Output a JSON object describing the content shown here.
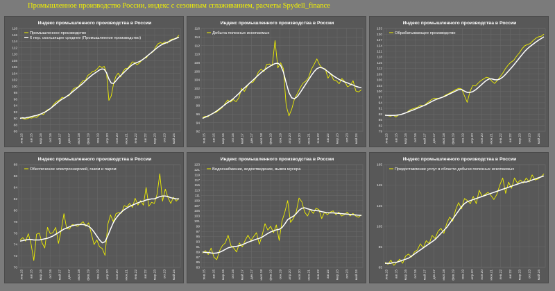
{
  "page": {
    "title": "Промышленное производство России, индекс с сезонным сглаживанием, расчеты Spydell_finance"
  },
  "colors": {
    "background": "#7b7b7b",
    "panel": "#585858",
    "grid": "#6b6b6b",
    "raw_series": "#f0f000",
    "smoothed_series": "#ffffff",
    "title_text": "#f2f200"
  },
  "chart_data": [
    {
      "type": "line",
      "title": "Индекс промышленного производства в России",
      "legend": "top-left",
      "grid": true,
      "ylim": [
        86,
        118
      ],
      "yticks": [
        86,
        88,
        90,
        92,
        94,
        96,
        98,
        100,
        102,
        104,
        106,
        108,
        110,
        112,
        114,
        116,
        118
      ],
      "xticks": [
        "янв.15",
        "авг.15",
        "мар.16",
        "окт.16",
        "май.17",
        "дек.17",
        "июл.18",
        "фев.19",
        "сен.19",
        "апр.20",
        "ноя.20",
        "июн.21",
        "янв.22",
        "авг.22",
        "мар.23",
        "окт.23",
        "май.24"
      ],
      "series": [
        {
          "name": "Промышленное производство",
          "role": "raw",
          "values": [
            90.2,
            90.0,
            89.8,
            89.9,
            90.2,
            90.1,
            90.5,
            90.3,
            90.9,
            91.5,
            91.2,
            92.3,
            92.8,
            93.0,
            94.0,
            94.9,
            95.4,
            95.8,
            96.6,
            96.3,
            97.0,
            97.1,
            98.4,
            99.3,
            99.6,
            99.9,
            101.0,
            101.8,
            101.9,
            103.4,
            103.9,
            104.6,
            104.8,
            105.4,
            106.3,
            105.8,
            106.2,
            104.1,
            95.6,
            97.0,
            100.8,
            103.1,
            104.1,
            102.9,
            104.5,
            105.5,
            105.6,
            106.5,
            107.6,
            107.5,
            106.7,
            107.2,
            108.0,
            108.8,
            108.8,
            109.9,
            110.3,
            110.8,
            112.2,
            113.2,
            113.6,
            113.3,
            113.8,
            113.4,
            114.3,
            114.7,
            114.8,
            115.1,
            115.9
          ]
        },
        {
          "name": "6 пер. скользящее среднее (Промышленное производство)",
          "role": "smoothed",
          "values": [
            90.0,
            90.2,
            90.1,
            90.3,
            90.4,
            90.6,
            90.8,
            90.9,
            91.2,
            91.4,
            91.8,
            92.1,
            92.6,
            93.1,
            93.7,
            94.3,
            94.9,
            95.5,
            96.0,
            96.4,
            96.9,
            97.4,
            98.0,
            98.6,
            99.2,
            99.8,
            100.4,
            101.0,
            101.7,
            102.4,
            103.0,
            103.6,
            104.1,
            104.6,
            105.1,
            105.4,
            105.3,
            104.2,
            102.3,
            101.0,
            100.9,
            101.7,
            102.6,
            103.3,
            104.0,
            104.7,
            105.4,
            106.1,
            106.7,
            107.1,
            107.4,
            107.7,
            108.1,
            108.6,
            109.2,
            109.8,
            110.4,
            111.0,
            111.6,
            112.2,
            112.7,
            113.1,
            113.4,
            113.7,
            114.0,
            114.4,
            114.7,
            115.0,
            115.3
          ]
        }
      ]
    },
    {
      "type": "line",
      "title": "Индекс промышленного производства в России",
      "legend": "top-left",
      "grid": true,
      "ylim": [
        92,
        116
      ],
      "yticks": [
        92,
        94,
        96,
        98,
        100,
        102,
        104,
        106,
        108,
        110,
        112,
        114,
        116
      ],
      "xticks": [
        "янв.15",
        "авг.15",
        "мар.16",
        "окт.16",
        "май.17",
        "дек.17",
        "июл.18",
        "фев.19",
        "сен.19",
        "апр.20",
        "ноя.20",
        "июн.21",
        "янв.22",
        "авг.22",
        "мар.23",
        "окт.23",
        "май.24"
      ],
      "series": [
        {
          "name": "Добыча полезных ископаемых",
          "role": "raw",
          "values": [
            95.2,
            95.5,
            95.4,
            96.0,
            96.2,
            96.5,
            97.0,
            97.5,
            98.4,
            99.3,
            98.8,
            99.4,
            98.9,
            99.8,
            102.0,
            101.3,
            102.5,
            103.4,
            103.4,
            104.3,
            105.8,
            106.5,
            105.9,
            107.6,
            107.7,
            107.3,
            113.2,
            106.8,
            108.0,
            106.6,
            98.0,
            95.6,
            97.2,
            99.6,
            100.8,
            102.1,
            103.2,
            103.7,
            104.5,
            106.4,
            107.6,
            108.9,
            107.5,
            106.7,
            106.6,
            104.4,
            105.4,
            104.0,
            103.8,
            103.1,
            104.3,
            103.6,
            102.4,
            102.7,
            103.8,
            101.4,
            101.2,
            101.7
          ]
        },
        {
          "name": "",
          "role": "smoothed",
          "values": [
            95.0,
            95.3,
            95.6,
            95.9,
            96.3,
            96.7,
            97.2,
            97.7,
            98.2,
            98.7,
            99.1,
            99.6,
            100.2,
            100.8,
            101.5,
            102.1,
            102.7,
            103.3,
            103.9,
            104.5,
            105.1,
            105.7,
            106.2,
            106.7,
            107.1,
            107.5,
            107.8,
            107.9,
            107.4,
            105.8,
            103.3,
            101.0,
            99.8,
            99.6,
            100.1,
            101.0,
            102.0,
            103.0,
            104.0,
            105.0,
            105.9,
            106.6,
            106.9,
            106.8,
            106.4,
            105.9,
            105.4,
            104.9,
            104.5,
            104.1,
            103.8,
            103.5,
            103.3,
            103.0,
            102.8,
            102.5,
            102.3,
            102.2
          ]
        }
      ]
    },
    {
      "type": "line",
      "title": "Индекс промышленного производства в России",
      "legend": "top-left",
      "grid": true,
      "ylim": [
        79,
        133
      ],
      "yticks": [
        79,
        82,
        85,
        88,
        91,
        94,
        97,
        100,
        103,
        106,
        109,
        112,
        115,
        118,
        121,
        124,
        127,
        130,
        133
      ],
      "xticks": [
        "янв.15",
        "авг.15",
        "мар.16",
        "окт.16",
        "май.17",
        "дек.17",
        "июл.18",
        "фев.19",
        "сен.19",
        "апр.20",
        "ноя.20",
        "июн.21",
        "янв.22",
        "авг.22",
        "мар.23",
        "окт.23",
        "май.24"
      ],
      "series": [
        {
          "name": "Обрабатывающее производство",
          "role": "raw",
          "values": [
            87.5,
            87.2,
            86.9,
            87.4,
            86.5,
            87.6,
            87.8,
            88.4,
            89.0,
            90.2,
            90.7,
            91.2,
            91.7,
            92.8,
            92.4,
            93.4,
            94.6,
            95.7,
            96.4,
            96.2,
            96.5,
            97.0,
            97.9,
            98.6,
            99.4,
            100.2,
            101.0,
            101.6,
            101.2,
            97.6,
            94.2,
            99.8,
            103.0,
            102.8,
            104.3,
            105.6,
            106.5,
            107.4,
            107.0,
            105.3,
            104.1,
            105.7,
            107.6,
            109.6,
            112.0,
            113.9,
            115.3,
            116.3,
            118.4,
            120.1,
            122.3,
            123.9,
            124.6,
            125.1,
            126.6,
            127.8,
            128.6,
            128.9,
            130.0
          ]
        },
        {
          "name": "",
          "role": "smoothed",
          "values": [
            87.4,
            87.3,
            87.3,
            87.3,
            87.4,
            87.6,
            87.9,
            88.4,
            88.9,
            89.5,
            90.0,
            90.6,
            91.2,
            91.8,
            92.4,
            93.0,
            93.8,
            94.6,
            95.3,
            95.9,
            96.4,
            96.9,
            97.5,
            98.2,
            98.9,
            99.6,
            100.3,
            100.9,
            100.9,
            100.1,
            99.4,
            99.4,
            99.8,
            100.7,
            101.9,
            103.2,
            104.5,
            105.7,
            106.5,
            106.5,
            106.1,
            106.0,
            106.5,
            107.5,
            108.9,
            110.5,
            112.1,
            113.8,
            115.6,
            117.4,
            119.2,
            120.9,
            122.4,
            123.6,
            124.7,
            125.8,
            126.8,
            127.7,
            128.6
          ]
        }
      ]
    },
    {
      "type": "line",
      "title": "Индекс промышленного производства в России",
      "legend": "top-left",
      "grid": true,
      "ylim": [
        70,
        88
      ],
      "yticks": [
        70,
        72,
        74,
        76,
        78,
        80,
        82,
        84,
        86,
        88
      ],
      "xticks": [
        "янв.15",
        "авг.15",
        "мар.16",
        "окт.16",
        "май.17",
        "дек.17",
        "июл.18",
        "фев.19",
        "сен.19",
        "апр.20",
        "ноя.20",
        "июн.21",
        "янв.22",
        "авг.22",
        "мар.23",
        "окт.23",
        "май.24"
      ],
      "series": [
        {
          "name": "Обеспечение электроэнергией, газом и паром",
          "role": "raw",
          "values": [
            74.8,
            75.2,
            74.6,
            75.9,
            74.1,
            71.2,
            75.8,
            76.0,
            74.3,
            73.4,
            77.0,
            75.9,
            76.1,
            77.0,
            74.2,
            76.5,
            79.4,
            76.8,
            76.7,
            77.5,
            77.4,
            77.2,
            77.6,
            78.0,
            77.2,
            77.8,
            75.9,
            74.0,
            74.8,
            73.6,
            73.3,
            72.1,
            77.5,
            79.2,
            78.0,
            79.4,
            79.6,
            79.5,
            80.8,
            80.6,
            81.2,
            80.5,
            82.1,
            80.9,
            81.7,
            80.9,
            84.0,
            80.7,
            81.4,
            81.2,
            82.8,
            86.4,
            81.6,
            83.7,
            82.2,
            81.2,
            82.3,
            81.6,
            82.1
          ]
        },
        {
          "name": "",
          "role": "smoothed",
          "values": [
            74.6,
            74.7,
            74.8,
            74.9,
            74.9,
            74.8,
            74.8,
            74.8,
            74.9,
            75.0,
            75.1,
            75.3,
            75.5,
            75.8,
            76.1,
            76.4,
            76.7,
            76.9,
            77.1,
            77.3,
            77.4,
            77.5,
            77.5,
            77.5,
            77.4,
            77.2,
            76.8,
            76.2,
            75.5,
            74.8,
            74.3,
            74.5,
            75.5,
            76.7,
            77.8,
            78.6,
            79.2,
            79.7,
            80.1,
            80.4,
            80.7,
            80.9,
            81.1,
            81.3,
            81.5,
            81.6,
            81.8,
            81.9,
            82.0,
            82.0,
            82.2,
            82.4,
            82.5,
            82.5,
            82.4,
            82.2,
            82.1,
            82.0,
            82.0
          ]
        }
      ]
    },
    {
      "type": "line",
      "title": "Индекс промышленного производства в России",
      "legend": "top-left",
      "grid": true,
      "ylim": [
        83,
        123
      ],
      "yticks": [
        83,
        85,
        87,
        89,
        91,
        93,
        95,
        97,
        99,
        101,
        103,
        105,
        107,
        109,
        111,
        113,
        115,
        117,
        119,
        121,
        123
      ],
      "xticks": [
        "янв.15",
        "авг.15",
        "мар.16",
        "окт.16",
        "май.17",
        "дек.17",
        "июл.18",
        "фев.19",
        "сен.19",
        "апр.20",
        "ноя.20",
        "июн.21",
        "янв.22",
        "авг.22",
        "мар.23",
        "окт.23",
        "май.24"
      ],
      "series": [
        {
          "name": "Водоснабжение, водоотведение, вывоз мусора",
          "role": "raw",
          "values": [
            88.5,
            89.5,
            88.0,
            90.5,
            87.0,
            86.0,
            89.5,
            91.5,
            92.5,
            95.5,
            91.5,
            90.5,
            89.0,
            92.5,
            91.0,
            93.5,
            95.5,
            93.5,
            95.0,
            96.5,
            92.0,
            95.5,
            100.0,
            97.5,
            99.0,
            96.5,
            99.5,
            93.5,
            101.0,
            104.5,
            109.0,
            100.5,
            102.0,
            104.5,
            110.0,
            108.5,
            104.5,
            103.0,
            105.5,
            104.0,
            106.0,
            105.5,
            102.0,
            104.5,
            103.5,
            104.5,
            105.0,
            103.5,
            104.5,
            103.0,
            103.5,
            104.5,
            103.0,
            104.0,
            103.0,
            102.5,
            103.5
          ]
        },
        {
          "name": "",
          "role": "smoothed",
          "values": [
            89.0,
            88.8,
            88.8,
            88.6,
            88.5,
            88.6,
            88.9,
            89.4,
            90.0,
            90.6,
            90.9,
            91.1,
            91.2,
            91.5,
            91.8,
            92.3,
            92.8,
            93.2,
            93.6,
            94.0,
            94.3,
            94.8,
            95.5,
            96.2,
            96.8,
            97.2,
            97.6,
            97.8,
            98.5,
            99.9,
            101.6,
            102.3,
            102.9,
            103.9,
            105.2,
            106.0,
            106.2,
            105.8,
            105.5,
            105.2,
            105.1,
            105.0,
            104.7,
            104.5,
            104.3,
            104.2,
            104.2,
            104.1,
            104.0,
            103.9,
            103.8,
            103.7,
            103.6,
            103.5,
            103.4,
            103.3,
            103.2
          ]
        }
      ]
    },
    {
      "type": "line",
      "title": "Индекс промышленного производства в России",
      "legend": "top-left",
      "grid": true,
      "ylim": [
        65,
        165
      ],
      "yticks": [
        65,
        85,
        105,
        125,
        145,
        165
      ],
      "xticks": [
        "янв.15",
        "авг.15",
        "мар.16",
        "окт.16",
        "май.17",
        "дек.17",
        "июл.18",
        "фев.19",
        "сен.19",
        "апр.20",
        "ноя.20",
        "июн.21",
        "янв.22",
        "авг.22",
        "мар.23",
        "окт.23",
        "май.24"
      ],
      "series": [
        {
          "name": "Предоставление услуг в области добычи полезных ископаемых",
          "role": "raw",
          "values": [
            70,
            68,
            72,
            67,
            70,
            73,
            69,
            76,
            78,
            75,
            80,
            82,
            88,
            84,
            91,
            88,
            96,
            93,
            100,
            103,
            98,
            108,
            114,
            110,
            121,
            128,
            122,
            132,
            130,
            127,
            134,
            127,
            140,
            134,
            136,
            138,
            135,
            131,
            136,
            145,
            152,
            137,
            148,
            142,
            152,
            147,
            150,
            147,
            152,
            148,
            155,
            150,
            151,
            153,
            156
          ]
        },
        {
          "name": "",
          "role": "smoothed",
          "values": [
            69,
            69,
            69,
            70,
            70,
            71,
            72,
            73,
            74,
            76,
            78,
            80,
            82,
            84,
            86,
            88,
            90,
            92,
            95,
            98,
            101,
            104,
            108,
            112,
            116,
            120,
            124,
            127,
            129,
            130,
            131,
            132,
            133,
            134,
            135,
            136,
            137,
            138,
            139,
            140,
            141,
            142,
            143,
            144,
            145,
            146,
            147,
            148,
            148,
            149,
            150,
            151,
            152,
            153,
            154
          ]
        }
      ]
    }
  ]
}
